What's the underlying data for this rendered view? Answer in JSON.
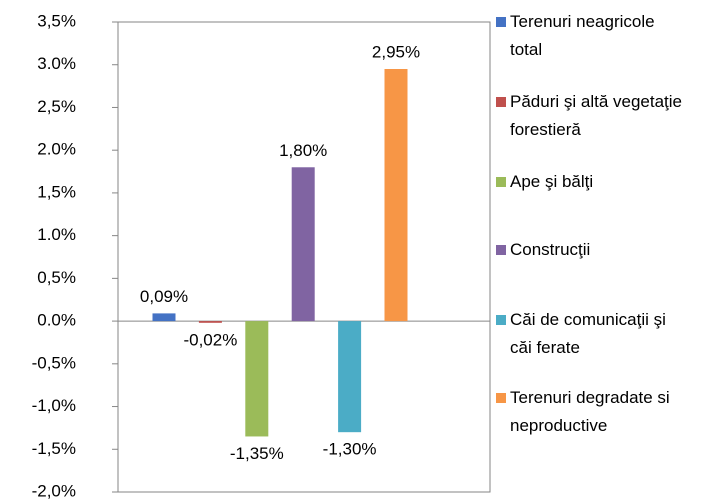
{
  "chart_data": {
    "type": "bar",
    "series": [
      {
        "name": "Terenuri neagricole total",
        "color": "#4472c4",
        "values": [
          0.09
        ],
        "value_labels": [
          "0,09%"
        ]
      },
      {
        "name": "Păduri şi altă vegetaţie forestieră",
        "color": "#c0504d",
        "values": [
          -0.02
        ],
        "value_labels": [
          "-0,02%"
        ]
      },
      {
        "name": "Ape şi bălţi",
        "color": "#9bbb59",
        "values": [
          -1.35
        ],
        "value_labels": [
          "-1,35%"
        ]
      },
      {
        "name": "Construcţii",
        "color": "#8064a2",
        "values": [
          1.8
        ],
        "value_labels": [
          "1,80%"
        ]
      },
      {
        "name": "Căi de comunicaţii şi căi ferate",
        "color": "#4bacc6",
        "values": [
          -1.3
        ],
        "value_labels": [
          "-1,30%"
        ]
      },
      {
        "name": "Terenuri degradate si neproductive",
        "color": "#f79646",
        "values": [
          2.95
        ],
        "value_labels": [
          "2,95%"
        ]
      }
    ],
    "ylim": [
      -2.0,
      3.5
    ],
    "yticks": [
      {
        "value": -2.0,
        "label": "-2,0%"
      },
      {
        "value": -1.5,
        "label": "-1,5%"
      },
      {
        "value": -1.0,
        "label": "-1,0%"
      },
      {
        "value": -0.5,
        "label": "-0,5%"
      },
      {
        "value": 0.0,
        "label": "0.0%"
      },
      {
        "value": 0.5,
        "label": "0,5%"
      },
      {
        "value": 1.0,
        "label": "1.0%"
      },
      {
        "value": 1.5,
        "label": "1,5%"
      },
      {
        "value": 2.0,
        "label": "2.0%"
      },
      {
        "value": 2.5,
        "label": "2,5%"
      },
      {
        "value": 3.0,
        "label": "3.0%"
      },
      {
        "value": 3.5,
        "label": "3,5%"
      }
    ],
    "grid": false,
    "legend": "right"
  }
}
